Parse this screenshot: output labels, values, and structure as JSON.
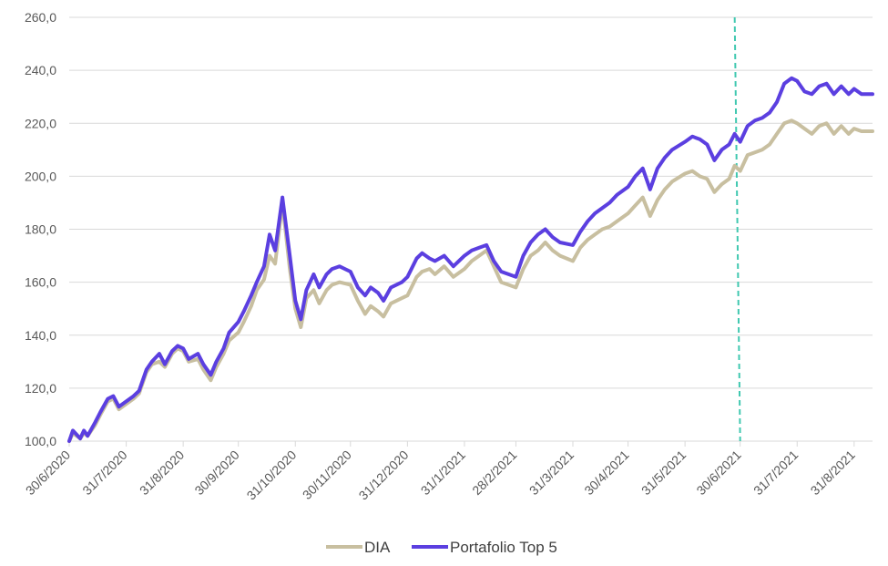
{
  "chart_data": {
    "type": "line",
    "xlabel": "",
    "ylabel": "",
    "ylim": [
      100,
      260
    ],
    "y_ticks": [
      "100,0",
      "120,0",
      "140,0",
      "160,0",
      "180,0",
      "200,0",
      "220,0",
      "240,0",
      "260,0"
    ],
    "x_ticks": [
      "30/6/2020",
      "31/7/2020",
      "31/8/2020",
      "30/9/2020",
      "31/10/2020",
      "30/11/2020",
      "31/12/2020",
      "31/1/2021",
      "28/2/2021",
      "31/3/2021",
      "30/4/2021",
      "31/5/2021",
      "30/6/2021",
      "31/7/2021",
      "31/8/2021"
    ],
    "x_range": [
      "2020-06-30",
      "2021-09-10"
    ],
    "grid": "horizontal",
    "legend_position": "bottom",
    "vline": {
      "date": "2021-06-30",
      "color": "#40C8B0",
      "style": "dashed"
    },
    "series": [
      {
        "name": "DIA",
        "color": "#C8BFA0",
        "points": [
          [
            "2020-06-30",
            100
          ],
          [
            "2020-07-02",
            103
          ],
          [
            "2020-07-06",
            101
          ],
          [
            "2020-07-08",
            103
          ],
          [
            "2020-07-10",
            102
          ],
          [
            "2020-07-14",
            106
          ],
          [
            "2020-07-17",
            110
          ],
          [
            "2020-07-21",
            115
          ],
          [
            "2020-07-24",
            116
          ],
          [
            "2020-07-27",
            112
          ],
          [
            "2020-07-31",
            114
          ],
          [
            "2020-08-04",
            116
          ],
          [
            "2020-08-07",
            118
          ],
          [
            "2020-08-11",
            126
          ],
          [
            "2020-08-14",
            129
          ],
          [
            "2020-08-18",
            130
          ],
          [
            "2020-08-21",
            128
          ],
          [
            "2020-08-25",
            133
          ],
          [
            "2020-08-28",
            135
          ],
          [
            "2020-08-31",
            134
          ],
          [
            "2020-09-03",
            130
          ],
          [
            "2020-09-08",
            131
          ],
          [
            "2020-09-11",
            127
          ],
          [
            "2020-09-15",
            123
          ],
          [
            "2020-09-18",
            128
          ],
          [
            "2020-09-22",
            133
          ],
          [
            "2020-09-25",
            138
          ],
          [
            "2020-09-30",
            141
          ],
          [
            "2020-10-03",
            145
          ],
          [
            "2020-10-07",
            151
          ],
          [
            "2020-10-10",
            157
          ],
          [
            "2020-10-14",
            161
          ],
          [
            "2020-10-17",
            170
          ],
          [
            "2020-10-20",
            167
          ],
          [
            "2020-10-24",
            190
          ],
          [
            "2020-10-28",
            165
          ],
          [
            "2020-10-31",
            150
          ],
          [
            "2020-11-03",
            143
          ],
          [
            "2020-11-06",
            154
          ],
          [
            "2020-11-10",
            157
          ],
          [
            "2020-11-13",
            152
          ],
          [
            "2020-11-17",
            157
          ],
          [
            "2020-11-20",
            159
          ],
          [
            "2020-11-24",
            160
          ],
          [
            "2020-11-30",
            159
          ],
          [
            "2020-12-04",
            153
          ],
          [
            "2020-12-08",
            148
          ],
          [
            "2020-12-11",
            151
          ],
          [
            "2020-12-15",
            149
          ],
          [
            "2020-12-18",
            147
          ],
          [
            "2020-12-22",
            152
          ],
          [
            "2020-12-28",
            154
          ],
          [
            "2020-12-31",
            155
          ],
          [
            "2021-01-05",
            162
          ],
          [
            "2021-01-08",
            164
          ],
          [
            "2021-01-12",
            165
          ],
          [
            "2021-01-15",
            163
          ],
          [
            "2021-01-20",
            166
          ],
          [
            "2021-01-25",
            162
          ],
          [
            "2021-01-31",
            165
          ],
          [
            "2021-02-04",
            168
          ],
          [
            "2021-02-08",
            170
          ],
          [
            "2021-02-12",
            172
          ],
          [
            "2021-02-16",
            166
          ],
          [
            "2021-02-20",
            160
          ],
          [
            "2021-02-28",
            158
          ],
          [
            "2021-03-04",
            165
          ],
          [
            "2021-03-08",
            170
          ],
          [
            "2021-03-12",
            172
          ],
          [
            "2021-03-16",
            175
          ],
          [
            "2021-03-20",
            172
          ],
          [
            "2021-03-24",
            170
          ],
          [
            "2021-03-31",
            168
          ],
          [
            "2021-04-04",
            173
          ],
          [
            "2021-04-08",
            176
          ],
          [
            "2021-04-12",
            178
          ],
          [
            "2021-04-16",
            180
          ],
          [
            "2021-04-20",
            181
          ],
          [
            "2021-04-24",
            183
          ],
          [
            "2021-04-30",
            186
          ],
          [
            "2021-05-04",
            189
          ],
          [
            "2021-05-08",
            192
          ],
          [
            "2021-05-12",
            185
          ],
          [
            "2021-05-16",
            191
          ],
          [
            "2021-05-20",
            195
          ],
          [
            "2021-05-24",
            198
          ],
          [
            "2021-05-31",
            201
          ],
          [
            "2021-06-04",
            202
          ],
          [
            "2021-06-08",
            200
          ],
          [
            "2021-06-12",
            199
          ],
          [
            "2021-06-16",
            194
          ],
          [
            "2021-06-20",
            197
          ],
          [
            "2021-06-24",
            199
          ],
          [
            "2021-06-27",
            204
          ],
          [
            "2021-06-30",
            202
          ],
          [
            "2021-07-04",
            208
          ],
          [
            "2021-07-08",
            209
          ],
          [
            "2021-07-12",
            210
          ],
          [
            "2021-07-16",
            212
          ],
          [
            "2021-07-20",
            216
          ],
          [
            "2021-07-24",
            220
          ],
          [
            "2021-07-28",
            221
          ],
          [
            "2021-07-31",
            220
          ],
          [
            "2021-08-04",
            218
          ],
          [
            "2021-08-08",
            216
          ],
          [
            "2021-08-12",
            219
          ],
          [
            "2021-08-16",
            220
          ],
          [
            "2021-08-20",
            216
          ],
          [
            "2021-08-24",
            219
          ],
          [
            "2021-08-28",
            216
          ],
          [
            "2021-08-31",
            218
          ],
          [
            "2021-09-04",
            217
          ],
          [
            "2021-09-10",
            217
          ]
        ]
      },
      {
        "name": "Portafolio Top 5",
        "color": "#5B3FE0",
        "points": [
          [
            "2020-06-30",
            100
          ],
          [
            "2020-07-02",
            104
          ],
          [
            "2020-07-06",
            101
          ],
          [
            "2020-07-08",
            104
          ],
          [
            "2020-07-10",
            102
          ],
          [
            "2020-07-14",
            107
          ],
          [
            "2020-07-17",
            111
          ],
          [
            "2020-07-21",
            116
          ],
          [
            "2020-07-24",
            117
          ],
          [
            "2020-07-27",
            113
          ],
          [
            "2020-07-31",
            115
          ],
          [
            "2020-08-04",
            117
          ],
          [
            "2020-08-07",
            119
          ],
          [
            "2020-08-11",
            127
          ],
          [
            "2020-08-14",
            130
          ],
          [
            "2020-08-18",
            133
          ],
          [
            "2020-08-21",
            129
          ],
          [
            "2020-08-25",
            134
          ],
          [
            "2020-08-28",
            136
          ],
          [
            "2020-08-31",
            135
          ],
          [
            "2020-09-03",
            131
          ],
          [
            "2020-09-08",
            133
          ],
          [
            "2020-09-11",
            129
          ],
          [
            "2020-09-15",
            125
          ],
          [
            "2020-09-18",
            130
          ],
          [
            "2020-09-22",
            135
          ],
          [
            "2020-09-25",
            141
          ],
          [
            "2020-09-30",
            145
          ],
          [
            "2020-10-03",
            149
          ],
          [
            "2020-10-07",
            155
          ],
          [
            "2020-10-10",
            160
          ],
          [
            "2020-10-14",
            166
          ],
          [
            "2020-10-17",
            178
          ],
          [
            "2020-10-20",
            172
          ],
          [
            "2020-10-24",
            192
          ],
          [
            "2020-10-28",
            170
          ],
          [
            "2020-10-31",
            153
          ],
          [
            "2020-11-03",
            146
          ],
          [
            "2020-11-06",
            157
          ],
          [
            "2020-11-10",
            163
          ],
          [
            "2020-11-13",
            158
          ],
          [
            "2020-11-17",
            163
          ],
          [
            "2020-11-20",
            165
          ],
          [
            "2020-11-24",
            166
          ],
          [
            "2020-11-30",
            164
          ],
          [
            "2020-12-04",
            158
          ],
          [
            "2020-12-08",
            155
          ],
          [
            "2020-12-11",
            158
          ],
          [
            "2020-12-15",
            156
          ],
          [
            "2020-12-18",
            153
          ],
          [
            "2020-12-22",
            158
          ],
          [
            "2020-12-28",
            160
          ],
          [
            "2020-12-31",
            162
          ],
          [
            "2021-01-05",
            169
          ],
          [
            "2021-01-08",
            171
          ],
          [
            "2021-01-12",
            169
          ],
          [
            "2021-01-15",
            168
          ],
          [
            "2021-01-20",
            170
          ],
          [
            "2021-01-25",
            166
          ],
          [
            "2021-01-31",
            170
          ],
          [
            "2021-02-04",
            172
          ],
          [
            "2021-02-08",
            173
          ],
          [
            "2021-02-12",
            174
          ],
          [
            "2021-02-16",
            168
          ],
          [
            "2021-02-20",
            164
          ],
          [
            "2021-02-28",
            162
          ],
          [
            "2021-03-04",
            170
          ],
          [
            "2021-03-08",
            175
          ],
          [
            "2021-03-12",
            178
          ],
          [
            "2021-03-16",
            180
          ],
          [
            "2021-03-20",
            177
          ],
          [
            "2021-03-24",
            175
          ],
          [
            "2021-03-31",
            174
          ],
          [
            "2021-04-04",
            179
          ],
          [
            "2021-04-08",
            183
          ],
          [
            "2021-04-12",
            186
          ],
          [
            "2021-04-16",
            188
          ],
          [
            "2021-04-20",
            190
          ],
          [
            "2021-04-24",
            193
          ],
          [
            "2021-04-30",
            196
          ],
          [
            "2021-05-04",
            200
          ],
          [
            "2021-05-08",
            203
          ],
          [
            "2021-05-12",
            195
          ],
          [
            "2021-05-16",
            203
          ],
          [
            "2021-05-20",
            207
          ],
          [
            "2021-05-24",
            210
          ],
          [
            "2021-05-31",
            213
          ],
          [
            "2021-06-04",
            215
          ],
          [
            "2021-06-08",
            214
          ],
          [
            "2021-06-12",
            212
          ],
          [
            "2021-06-16",
            206
          ],
          [
            "2021-06-20",
            210
          ],
          [
            "2021-06-24",
            212
          ],
          [
            "2021-06-27",
            216
          ],
          [
            "2021-06-30",
            213
          ],
          [
            "2021-07-04",
            219
          ],
          [
            "2021-07-08",
            221
          ],
          [
            "2021-07-12",
            222
          ],
          [
            "2021-07-16",
            224
          ],
          [
            "2021-07-20",
            228
          ],
          [
            "2021-07-24",
            235
          ],
          [
            "2021-07-28",
            237
          ],
          [
            "2021-07-31",
            236
          ],
          [
            "2021-08-04",
            232
          ],
          [
            "2021-08-08",
            231
          ],
          [
            "2021-08-12",
            234
          ],
          [
            "2021-08-16",
            235
          ],
          [
            "2021-08-20",
            231
          ],
          [
            "2021-08-24",
            234
          ],
          [
            "2021-08-28",
            231
          ],
          [
            "2021-08-31",
            233
          ],
          [
            "2021-09-04",
            231
          ],
          [
            "2021-09-10",
            231
          ]
        ]
      }
    ]
  }
}
